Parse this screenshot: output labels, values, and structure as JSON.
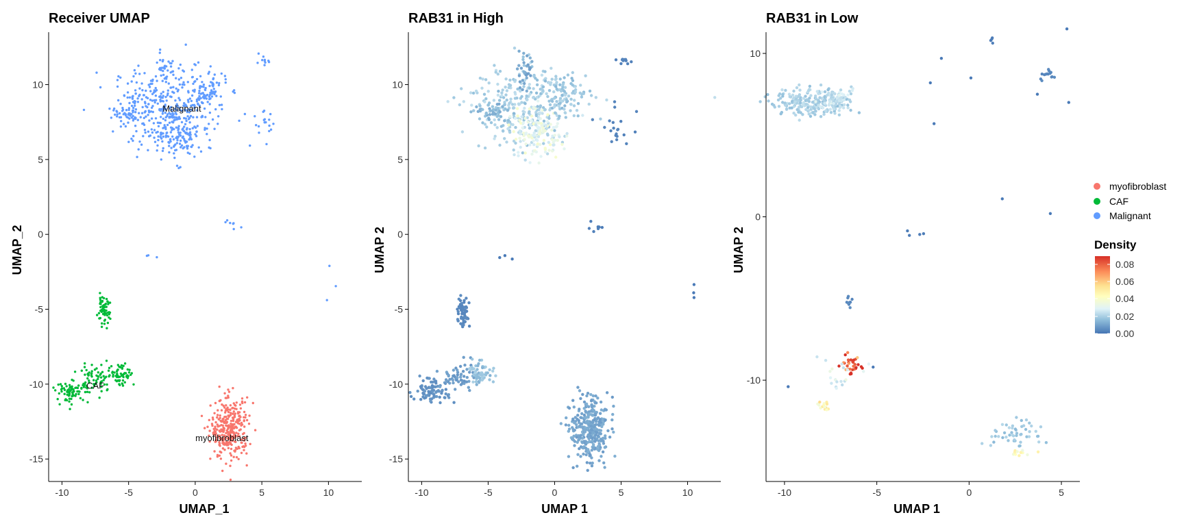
{
  "chart_data": [
    {
      "type": "scatter",
      "title": "Receiver UMAP",
      "xlabel": "UMAP_1",
      "ylabel": "UMAP_2",
      "xlim": [
        -11,
        12.5
      ],
      "ylim": [
        -16.5,
        13.5
      ],
      "xticks": [
        -10,
        -5,
        0,
        5,
        10
      ],
      "yticks": [
        -15,
        -10,
        -5,
        0,
        5,
        10
      ],
      "color_by": "cluster",
      "grid": false,
      "annotations": [
        {
          "text": "Malignant",
          "x": -1.0,
          "y": 8.2
        },
        {
          "text": "CAF",
          "x": -7.5,
          "y": -10.3
        },
        {
          "text": "myofibroblast",
          "x": 2.0,
          "y": -13.8
        }
      ],
      "clusters": [
        {
          "name": "Malignant",
          "color": "#619CFF",
          "x": -2.5,
          "y": 8.5,
          "sx": 1.8,
          "sy": 1.4,
          "n": 280
        },
        {
          "name": "Malignant",
          "color": "#619CFF",
          "x": -1.3,
          "y": 6.8,
          "sx": 0.9,
          "sy": 0.9,
          "n": 140
        },
        {
          "name": "Malignant",
          "color": "#619CFF",
          "x": 0.6,
          "y": 9.4,
          "sx": 0.9,
          "sy": 0.7,
          "n": 100
        },
        {
          "name": "Malignant",
          "color": "#619CFF",
          "x": -2.2,
          "y": 11.2,
          "sx": 0.3,
          "sy": 0.6,
          "n": 30
        },
        {
          "name": "Malignant",
          "color": "#619CFF",
          "x": -4.8,
          "y": 8.2,
          "sx": 0.7,
          "sy": 0.5,
          "n": 50
        },
        {
          "name": "Malignant",
          "color": "#619CFF",
          "x": 4.8,
          "y": 7.2,
          "sx": 0.7,
          "sy": 0.5,
          "n": 20
        },
        {
          "name": "Malignant",
          "color": "#619CFF",
          "x": 5.2,
          "y": 11.5,
          "sx": 0.3,
          "sy": 0.2,
          "n": 10
        },
        {
          "name": "Malignant",
          "color": "#619CFF",
          "x": 2.8,
          "y": 0.6,
          "sx": 0.5,
          "sy": 0.3,
          "n": 7
        },
        {
          "name": "Malignant",
          "color": "#619CFF",
          "x": -3.5,
          "y": -1.5,
          "sx": 0.3,
          "sy": 0.1,
          "n": 3
        },
        {
          "name": "Malignant",
          "color": "#619CFF",
          "x": 10.3,
          "y": -3.5,
          "sx": 0.4,
          "sy": 0.5,
          "n": 3
        },
        {
          "name": "CAF",
          "color": "#00BA38",
          "x": -6.9,
          "y": -5.1,
          "sx": 0.25,
          "sy": 0.45,
          "n": 60
        },
        {
          "name": "CAF",
          "color": "#00BA38",
          "x": -9.2,
          "y": -10.5,
          "sx": 0.6,
          "sy": 0.35,
          "n": 80
        },
        {
          "name": "CAF",
          "color": "#00BA38",
          "x": -7.5,
          "y": -9.6,
          "sx": 0.8,
          "sy": 0.5,
          "n": 60
        },
        {
          "name": "CAF",
          "color": "#00BA38",
          "x": -5.6,
          "y": -9.3,
          "sx": 0.5,
          "sy": 0.4,
          "n": 60
        },
        {
          "name": "myofibroblast",
          "color": "#F8766D",
          "x": 2.6,
          "y": -13.0,
          "sx": 0.7,
          "sy": 1.0,
          "n": 330
        }
      ]
    },
    {
      "type": "scatter",
      "title": "RAB31 in High",
      "xlabel": "UMAP 1",
      "ylabel": "UMAP 2",
      "xlim": [
        -11,
        12.5
      ],
      "ylim": [
        -16.5,
        13.5
      ],
      "xticks": [
        -10,
        -5,
        0,
        5,
        10
      ],
      "yticks": [
        -15,
        -10,
        -5,
        0,
        5,
        10
      ],
      "color_by": "density",
      "grid": false,
      "clusters": [
        {
          "x": -2.5,
          "y": 8.5,
          "sx": 1.8,
          "sy": 1.4,
          "n": 280,
          "density": 0.02
        },
        {
          "x": -1.3,
          "y": 6.8,
          "sx": 0.9,
          "sy": 0.9,
          "n": 140,
          "density": 0.034
        },
        {
          "x": 0.6,
          "y": 9.4,
          "sx": 0.9,
          "sy": 0.7,
          "n": 100,
          "density": 0.018
        },
        {
          "x": -2.2,
          "y": 11.2,
          "sx": 0.3,
          "sy": 0.6,
          "n": 30,
          "density": 0.01
        },
        {
          "x": -4.8,
          "y": 8.2,
          "sx": 0.7,
          "sy": 0.5,
          "n": 50,
          "density": 0.014
        },
        {
          "x": 4.8,
          "y": 7.2,
          "sx": 0.7,
          "sy": 0.5,
          "n": 20,
          "density": 0.003
        },
        {
          "x": 5.2,
          "y": 11.5,
          "sx": 0.3,
          "sy": 0.2,
          "n": 10,
          "density": 0.003
        },
        {
          "x": 2.8,
          "y": 0.6,
          "sx": 0.5,
          "sy": 0.3,
          "n": 7,
          "density": 0.002
        },
        {
          "x": -3.5,
          "y": -1.5,
          "sx": 0.3,
          "sy": 0.1,
          "n": 3,
          "density": 0.001
        },
        {
          "x": 10.3,
          "y": -3.5,
          "sx": 0.4,
          "sy": 0.5,
          "n": 3,
          "density": 0.001
        },
        {
          "x": -6.9,
          "y": -5.1,
          "sx": 0.25,
          "sy": 0.45,
          "n": 60,
          "density": 0.004
        },
        {
          "x": -9.2,
          "y": -10.5,
          "sx": 0.6,
          "sy": 0.35,
          "n": 80,
          "density": 0.006
        },
        {
          "x": -7.5,
          "y": -9.6,
          "sx": 0.8,
          "sy": 0.5,
          "n": 60,
          "density": 0.008
        },
        {
          "x": -5.6,
          "y": -9.3,
          "sx": 0.5,
          "sy": 0.4,
          "n": 60,
          "density": 0.016
        },
        {
          "x": 2.6,
          "y": -13.0,
          "sx": 0.7,
          "sy": 1.0,
          "n": 330,
          "density": 0.01
        }
      ]
    },
    {
      "type": "scatter",
      "title": "RAB31 in Low",
      "xlabel": "UMAP 1",
      "ylabel": "UMAP 2",
      "xlim": [
        -11,
        6
      ],
      "ylim": [
        -16.2,
        11.3
      ],
      "xticks": [
        -10,
        -5,
        0,
        5
      ],
      "yticks": [
        -10,
        0,
        10
      ],
      "color_by": "density",
      "grid": false,
      "clusters": [
        {
          "x": -8.5,
          "y": 7.0,
          "sx": 1.1,
          "sy": 0.4,
          "n": 220,
          "density": 0.02
        },
        {
          "x": -7.3,
          "y": 7.2,
          "sx": 0.5,
          "sy": 0.3,
          "n": 60,
          "density": 0.026
        },
        {
          "x": 4.2,
          "y": 8.7,
          "sx": 0.2,
          "sy": 0.2,
          "n": 15,
          "density": 0.004
        },
        {
          "x": 1.3,
          "y": 10.8,
          "sx": 0.1,
          "sy": 0.1,
          "n": 4,
          "density": 0.002
        },
        {
          "x": -2.7,
          "y": -1.0,
          "sx": 0.3,
          "sy": 0.1,
          "n": 4,
          "density": 0.002
        },
        {
          "x": -6.5,
          "y": -5.2,
          "sx": 0.08,
          "sy": 0.2,
          "n": 10,
          "density": 0.004
        },
        {
          "x": -6.3,
          "y": -9.0,
          "sx": 0.3,
          "sy": 0.3,
          "n": 30,
          "density": 0.085
        },
        {
          "x": -7.9,
          "y": -11.6,
          "sx": 0.2,
          "sy": 0.2,
          "n": 15,
          "density": 0.05
        },
        {
          "x": -7.2,
          "y": -10.0,
          "sx": 0.7,
          "sy": 0.5,
          "n": 20,
          "density": 0.03
        },
        {
          "x": 2.5,
          "y": -13.3,
          "sx": 0.6,
          "sy": 0.5,
          "n": 50,
          "density": 0.018
        },
        {
          "x": 2.8,
          "y": -14.4,
          "sx": 0.3,
          "sy": 0.2,
          "n": 12,
          "density": 0.042
        }
      ],
      "singletons": [
        {
          "x": -1.5,
          "y": 9.7
        },
        {
          "x": 0.1,
          "y": 8.5
        },
        {
          "x": -2.1,
          "y": 8.2
        },
        {
          "x": -1.9,
          "y": 5.7
        },
        {
          "x": 5.3,
          "y": 11.5
        },
        {
          "x": 1.8,
          "y": 1.1
        },
        {
          "x": 4.4,
          "y": 0.2
        },
        {
          "x": 3.7,
          "y": 7.5
        },
        {
          "x": 5.4,
          "y": 7.0
        },
        {
          "x": -9.8,
          "y": -10.4
        },
        {
          "x": -5.2,
          "y": -9.2
        }
      ]
    }
  ],
  "legend": {
    "clusters": [
      {
        "label": "myofibroblast",
        "color": "#F8766D"
      },
      {
        "label": "CAF",
        "color": "#00BA38"
      },
      {
        "label": "Malignant",
        "color": "#619CFF"
      }
    ],
    "density": {
      "title": "Density",
      "ticks": [
        "0.08",
        "0.06",
        "0.04",
        "0.02",
        "0.00"
      ],
      "range": [
        0,
        0.09
      ],
      "colors": [
        "#4575B4",
        "#91BFDB",
        "#E0F3F8",
        "#FFFFBF",
        "#FEE090",
        "#FC8D59",
        "#D73027"
      ]
    }
  }
}
